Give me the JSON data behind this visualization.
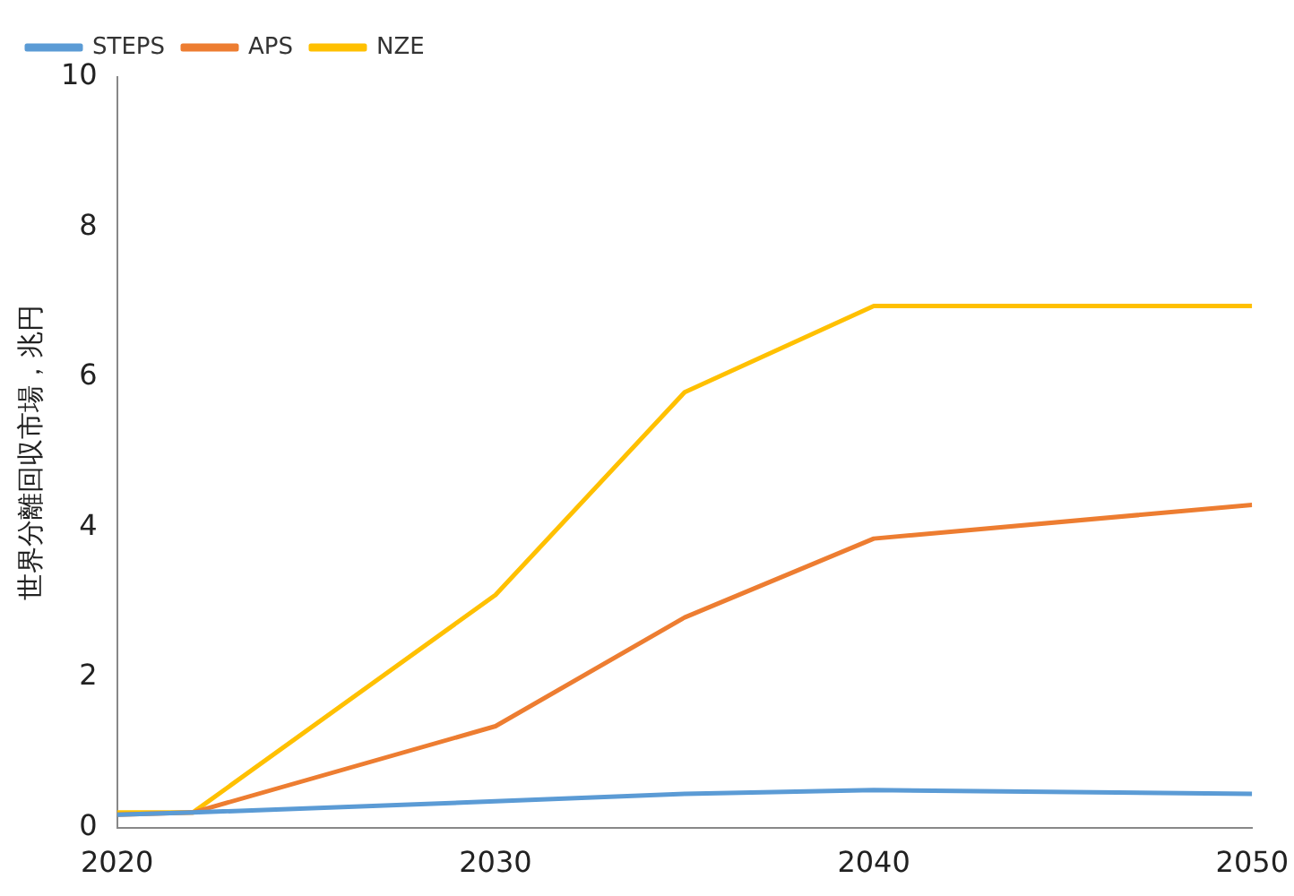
{
  "chart_data": {
    "type": "line",
    "ylabel": "世界分離回収市場，兆円",
    "x": [
      2020,
      2022,
      2030,
      2035,
      2040,
      2050
    ],
    "series": [
      {
        "name": "STEPS",
        "color": "#5b9bd5",
        "values": [
          0.17,
          0.2,
          0.35,
          0.45,
          0.5,
          0.45
        ]
      },
      {
        "name": "APS",
        "color": "#ed7d31",
        "values": [
          0.17,
          0.2,
          1.35,
          2.8,
          3.85,
          4.3
        ]
      },
      {
        "name": "NZE",
        "color": "#ffc000",
        "values": [
          0.2,
          0.2,
          3.1,
          5.8,
          6.95,
          6.95
        ]
      }
    ],
    "xlim": [
      2020,
      2050
    ],
    "xticks": [
      2020,
      2030,
      2040,
      2050
    ],
    "ylim": [
      0,
      10
    ],
    "yticks": [
      0,
      2,
      4,
      6,
      8,
      10
    ],
    "grid": false,
    "legend": "top left",
    "marker": "none",
    "line_style": "solid"
  }
}
